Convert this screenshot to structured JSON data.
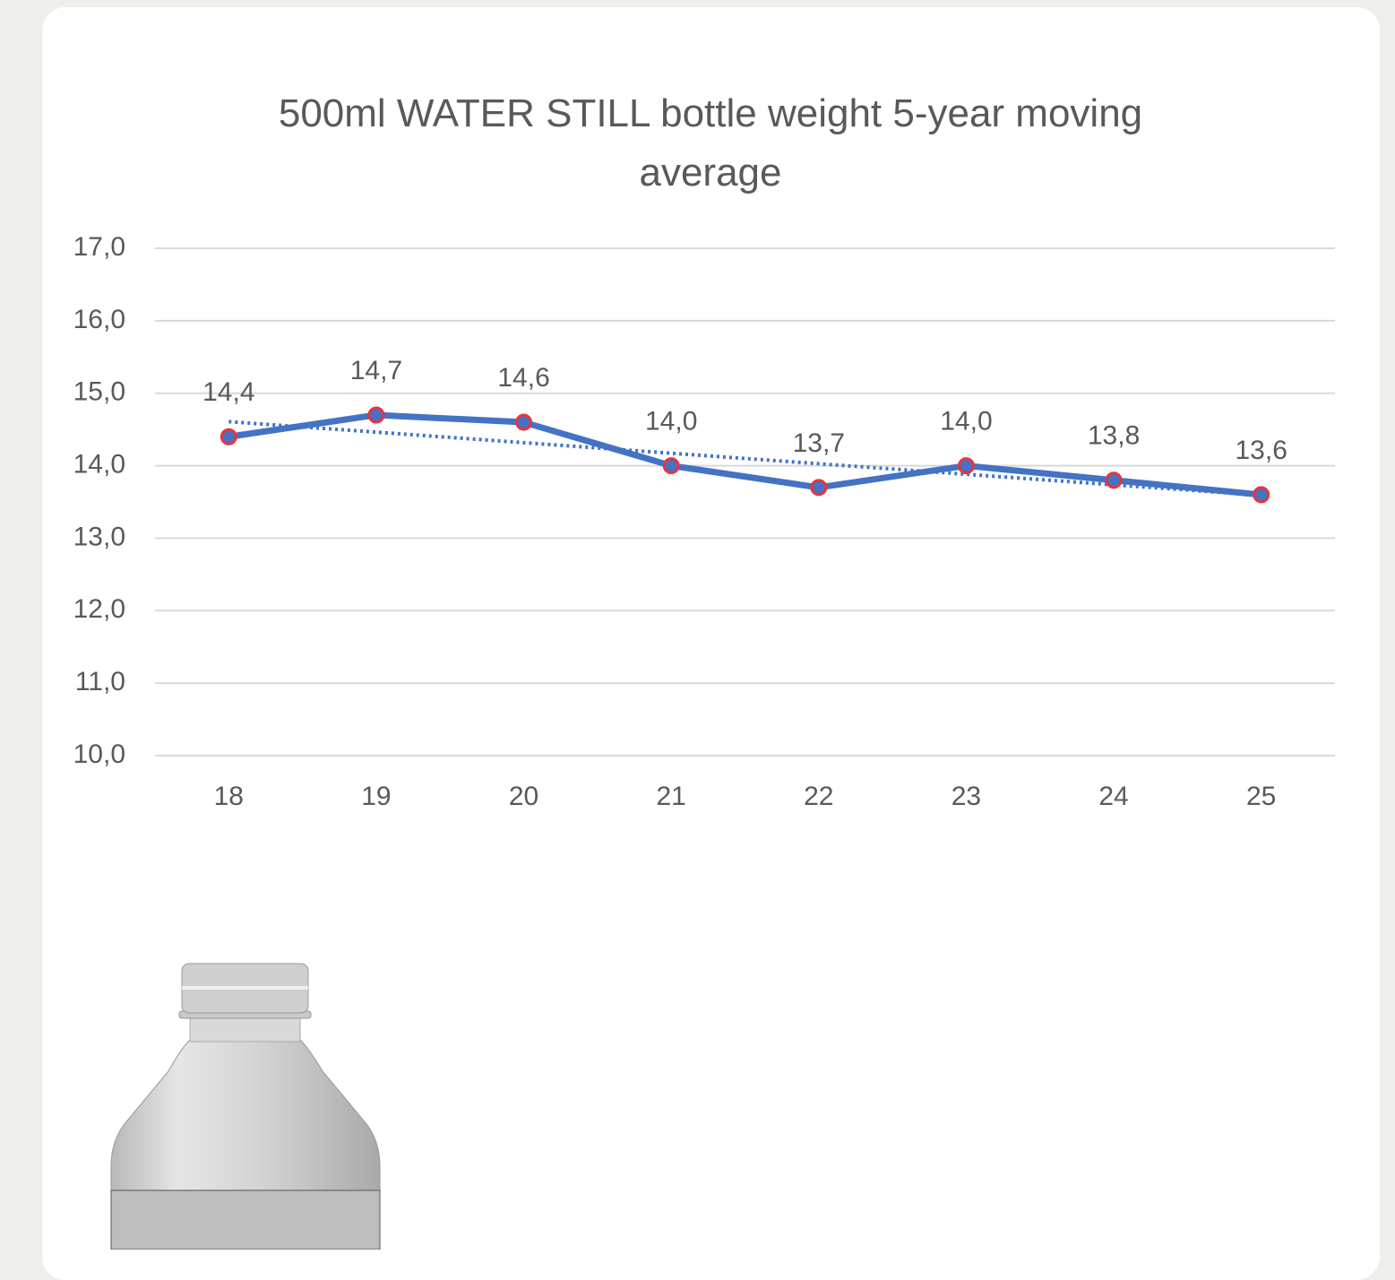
{
  "chart_data": {
    "type": "line",
    "title": "500ml WATER STILL bottle weight 5-year moving average",
    "categories": [
      "18",
      "19",
      "20",
      "21",
      "22",
      "23",
      "24",
      "25"
    ],
    "series": [
      {
        "color": "#4472c4",
        "marker_edge": "#e8343c",
        "values": [
          14.4,
          14.7,
          14.6,
          14.0,
          13.7,
          14.0,
          13.8,
          13.6
        ],
        "value_labels": [
          "14,4",
          "14,7",
          "14,6",
          "14,0",
          "13,7",
          "14,0",
          "13,8",
          "13,6"
        ]
      }
    ],
    "trendline": "linear",
    "ylim": [
      10,
      17
    ],
    "yticks": [
      {
        "value": 10,
        "label": "10,0"
      },
      {
        "value": 11,
        "label": "11,0"
      },
      {
        "value": 12,
        "label": "12,0"
      },
      {
        "value": 13,
        "label": "13,0"
      },
      {
        "value": 14,
        "label": "14,0"
      },
      {
        "value": 15,
        "label": "15,0"
      },
      {
        "value": 16,
        "label": "16,0"
      },
      {
        "value": 17,
        "label": "17,0"
      }
    ],
    "grid": true
  }
}
